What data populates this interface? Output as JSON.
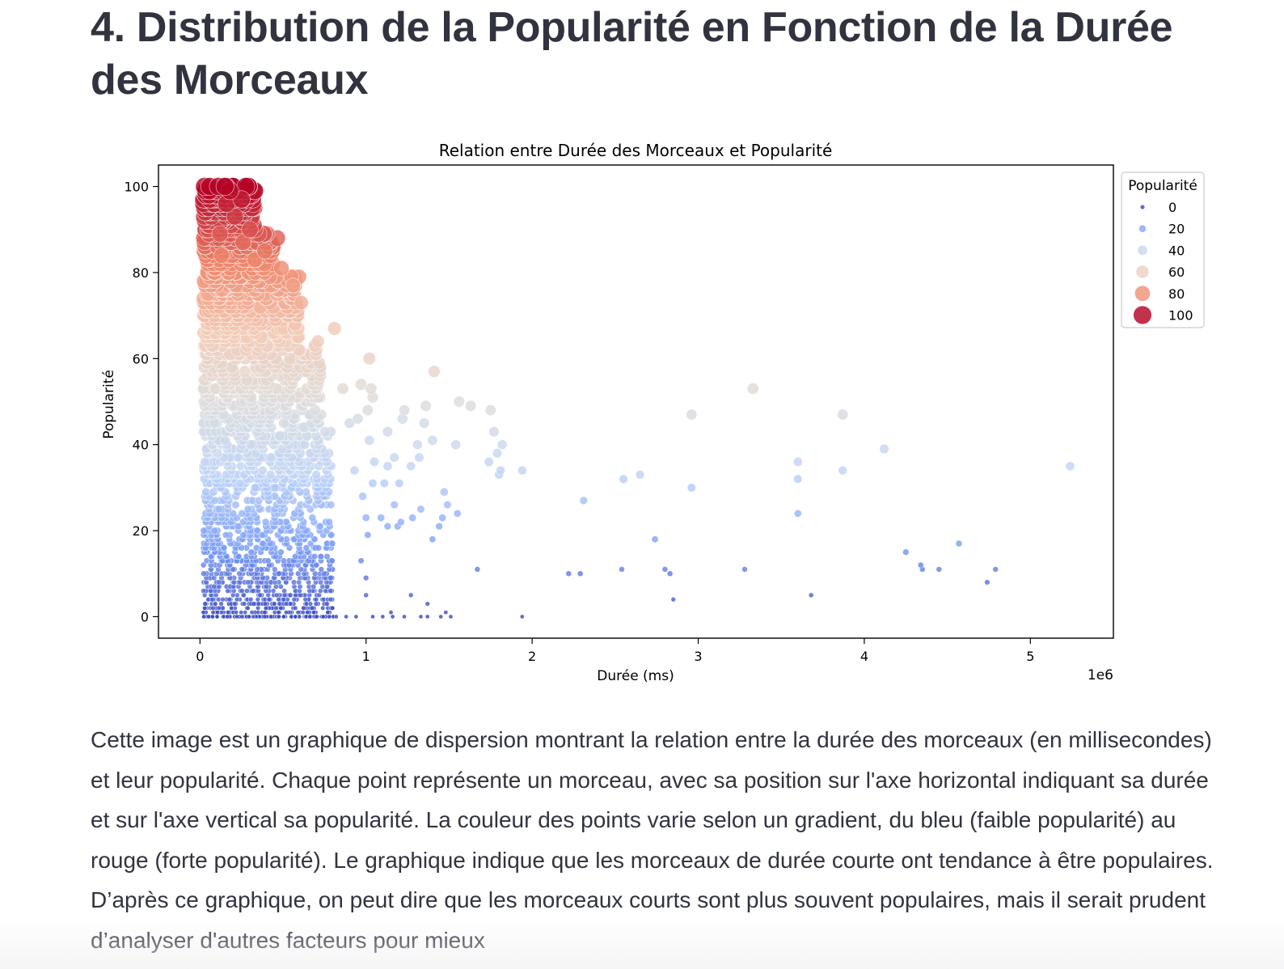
{
  "page": {
    "heading": "4. Distribution de la Popularité en Fonction de la Durée des Morceaux",
    "description": "Cette image est un graphique de dispersion montrant la relation entre la durée des morceaux (en millisecondes) et leur popularité. Chaque point représente un morceau, avec sa position sur l'axe horizontal indiquant sa durée et sur l'axe vertical sa popularité. La couleur des points varie selon un gradient, du bleu (faible popularité) au rouge (forte popularité). Le graphique indique que les morceaux de durée courte ont tendance à être populaires. D’après ce graphique, on peut dire que les morceaux courts sont plus souvent populaires, mais il serait prudent d’analyser d'autres facteurs pour mieux"
  },
  "chart_data": {
    "type": "scatter",
    "title": "Relation entre Durée des Morceaux et Popularité",
    "xlabel": "Durée (ms)",
    "ylabel": "Popularité",
    "x_offset_label": "1e6",
    "xlim": [
      -250000,
      5500000
    ],
    "ylim": [
      -5,
      105
    ],
    "x_ticks": [
      0,
      1000000,
      2000000,
      3000000,
      4000000,
      5000000
    ],
    "x_tick_labels": [
      "0",
      "1",
      "2",
      "3",
      "4",
      "5"
    ],
    "y_ticks": [
      0,
      20,
      40,
      60,
      80,
      100
    ],
    "y_tick_labels": [
      "0",
      "20",
      "40",
      "60",
      "80",
      "100"
    ],
    "grid": false,
    "colormap": "coolwarm",
    "color_stops": [
      "#3b4cc0",
      "#7b9ff9",
      "#c0d4f5",
      "#dddddd",
      "#f2cbb7",
      "#ee8468",
      "#b40426"
    ],
    "legend": {
      "title": "Popularité",
      "placement": "outside-right-top",
      "entries": [
        "0",
        "20",
        "40",
        "60",
        "80",
        "100"
      ],
      "values": [
        0,
        20,
        40,
        60,
        80,
        100
      ]
    },
    "cluster": {
      "description": "dense cluster of tracks with durée between 0 and about 800000 ms, spanning popularité 0 to 100",
      "x_range": [
        0,
        800000
      ],
      "y_range": [
        0,
        100
      ]
    },
    "points": [
      {
        "x": 150000,
        "y": 100
      },
      {
        "x": 180000,
        "y": 99
      },
      {
        "x": 250000,
        "y": 97
      },
      {
        "x": 160000,
        "y": 96
      },
      {
        "x": 210000,
        "y": 93
      },
      {
        "x": 300000,
        "y": 90
      },
      {
        "x": 120000,
        "y": 89
      },
      {
        "x": 260000,
        "y": 87
      },
      {
        "x": 390000,
        "y": 85
      },
      {
        "x": 330000,
        "y": 83
      },
      {
        "x": 490000,
        "y": 81
      },
      {
        "x": 130000,
        "y": 84
      },
      {
        "x": 560000,
        "y": 77
      },
      {
        "x": 610000,
        "y": 73
      },
      {
        "x": 810000,
        "y": 67
      },
      {
        "x": 710000,
        "y": 64
      },
      {
        "x": 1020000,
        "y": 60
      },
      {
        "x": 1410000,
        "y": 57
      },
      {
        "x": 970000,
        "y": 54
      },
      {
        "x": 1030000,
        "y": 53
      },
      {
        "x": 860000,
        "y": 53
      },
      {
        "x": 3330000,
        "y": 53
      },
      {
        "x": 1040000,
        "y": 51
      },
      {
        "x": 1560000,
        "y": 50
      },
      {
        "x": 1630000,
        "y": 49
      },
      {
        "x": 1750000,
        "y": 48
      },
      {
        "x": 1230000,
        "y": 48
      },
      {
        "x": 1360000,
        "y": 49
      },
      {
        "x": 1010000,
        "y": 48
      },
      {
        "x": 2960000,
        "y": 47
      },
      {
        "x": 3870000,
        "y": 47
      },
      {
        "x": 950000,
        "y": 46
      },
      {
        "x": 1220000,
        "y": 46
      },
      {
        "x": 1350000,
        "y": 45
      },
      {
        "x": 900000,
        "y": 45
      },
      {
        "x": 1770000,
        "y": 43
      },
      {
        "x": 1130000,
        "y": 43
      },
      {
        "x": 1020000,
        "y": 41
      },
      {
        "x": 1400000,
        "y": 41
      },
      {
        "x": 1540000,
        "y": 40
      },
      {
        "x": 1310000,
        "y": 40
      },
      {
        "x": 1820000,
        "y": 40
      },
      {
        "x": 4120000,
        "y": 39
      },
      {
        "x": 1790000,
        "y": 38
      },
      {
        "x": 1170000,
        "y": 37
      },
      {
        "x": 1320000,
        "y": 37
      },
      {
        "x": 1050000,
        "y": 36
      },
      {
        "x": 1740000,
        "y": 36
      },
      {
        "x": 3600000,
        "y": 36
      },
      {
        "x": 5240000,
        "y": 35
      },
      {
        "x": 1270000,
        "y": 35
      },
      {
        "x": 1130000,
        "y": 35
      },
      {
        "x": 930000,
        "y": 34
      },
      {
        "x": 1940000,
        "y": 34
      },
      {
        "x": 3870000,
        "y": 34
      },
      {
        "x": 1810000,
        "y": 34
      },
      {
        "x": 1800000,
        "y": 33
      },
      {
        "x": 2650000,
        "y": 33
      },
      {
        "x": 2550000,
        "y": 32
      },
      {
        "x": 3600000,
        "y": 32
      },
      {
        "x": 1110000,
        "y": 31
      },
      {
        "x": 1200000,
        "y": 31
      },
      {
        "x": 1040000,
        "y": 31
      },
      {
        "x": 2960000,
        "y": 30
      },
      {
        "x": 1470000,
        "y": 29
      },
      {
        "x": 980000,
        "y": 28
      },
      {
        "x": 2310000,
        "y": 27
      },
      {
        "x": 1170000,
        "y": 26
      },
      {
        "x": 1490000,
        "y": 26
      },
      {
        "x": 1330000,
        "y": 25
      },
      {
        "x": 1550000,
        "y": 24
      },
      {
        "x": 3600000,
        "y": 24
      },
      {
        "x": 1000000,
        "y": 23
      },
      {
        "x": 1090000,
        "y": 23
      },
      {
        "x": 1460000,
        "y": 23
      },
      {
        "x": 1280000,
        "y": 23
      },
      {
        "x": 1130000,
        "y": 21
      },
      {
        "x": 1190000,
        "y": 21
      },
      {
        "x": 1440000,
        "y": 21
      },
      {
        "x": 1210000,
        "y": 22
      },
      {
        "x": 1010000,
        "y": 19
      },
      {
        "x": 1400000,
        "y": 18
      },
      {
        "x": 2740000,
        "y": 18
      },
      {
        "x": 4570000,
        "y": 17
      },
      {
        "x": 4250000,
        "y": 15
      },
      {
        "x": 970000,
        "y": 13
      },
      {
        "x": 4340000,
        "y": 12
      },
      {
        "x": 1670000,
        "y": 11
      },
      {
        "x": 2540000,
        "y": 11
      },
      {
        "x": 2800000,
        "y": 11
      },
      {
        "x": 3280000,
        "y": 11
      },
      {
        "x": 4350000,
        "y": 11
      },
      {
        "x": 4450000,
        "y": 11
      },
      {
        "x": 4790000,
        "y": 11
      },
      {
        "x": 2220000,
        "y": 10
      },
      {
        "x": 2290000,
        "y": 10
      },
      {
        "x": 2830000,
        "y": 10
      },
      {
        "x": 1000000,
        "y": 9
      },
      {
        "x": 4740000,
        "y": 8
      },
      {
        "x": 1000000,
        "y": 5
      },
      {
        "x": 1270000,
        "y": 5
      },
      {
        "x": 3680000,
        "y": 5
      },
      {
        "x": 2850000,
        "y": 4
      },
      {
        "x": 1370000,
        "y": 3
      },
      {
        "x": 1150000,
        "y": 1
      },
      {
        "x": 1480000,
        "y": 1
      },
      {
        "x": 880000,
        "y": 0
      },
      {
        "x": 940000,
        "y": 0
      },
      {
        "x": 1040000,
        "y": 0
      },
      {
        "x": 1100000,
        "y": 0
      },
      {
        "x": 1160000,
        "y": 0
      },
      {
        "x": 1230000,
        "y": 0
      },
      {
        "x": 1330000,
        "y": 0
      },
      {
        "x": 1370000,
        "y": 0
      },
      {
        "x": 1450000,
        "y": 0
      },
      {
        "x": 1510000,
        "y": 0
      },
      {
        "x": 1940000,
        "y": 0
      }
    ]
  }
}
